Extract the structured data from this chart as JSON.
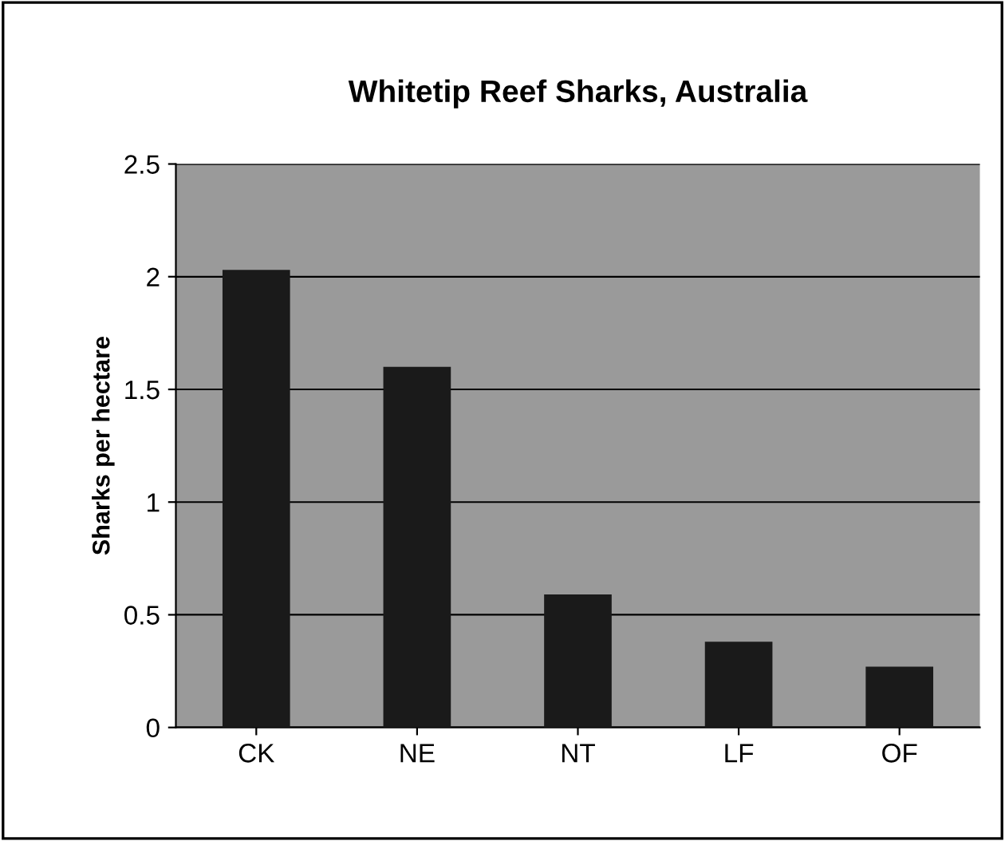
{
  "chart_data": {
    "type": "bar",
    "title": "Whitetip Reef Sharks, Australia",
    "ylabel": "Sharks per hectare",
    "categories": [
      "CK",
      "NE",
      "NT",
      "LF",
      "OF"
    ],
    "values": [
      2.03,
      1.6,
      0.59,
      0.38,
      0.27
    ],
    "color": "#1a1a1a",
    "ylim": [
      0,
      2.5
    ],
    "yticks": [
      0,
      0.5,
      1,
      1.5,
      2,
      2.5
    ],
    "grid": "y"
  }
}
